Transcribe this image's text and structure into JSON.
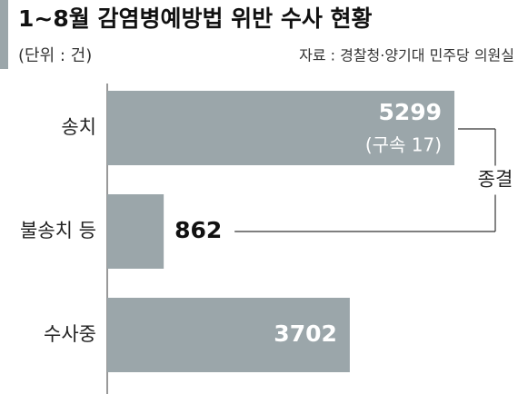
{
  "chart_data": {
    "type": "bar",
    "orientation": "horizontal",
    "title": "1~8월 감염병예방법 위반 수사 현황",
    "subtitle": "(단위 : 건)",
    "source": "자료 : 경찰청·양기대 민주당 의원실",
    "categories": [
      "송치",
      "불송치 등",
      "수사중"
    ],
    "values": [
      5299,
      862,
      3702
    ],
    "color": "#9ba6aa",
    "xlim": [
      0,
      6200
    ],
    "annotations": [
      {
        "text": "(구속 17)",
        "category": 0
      },
      {
        "text": "종결",
        "categories": [
          0,
          1
        ]
      }
    ]
  }
}
